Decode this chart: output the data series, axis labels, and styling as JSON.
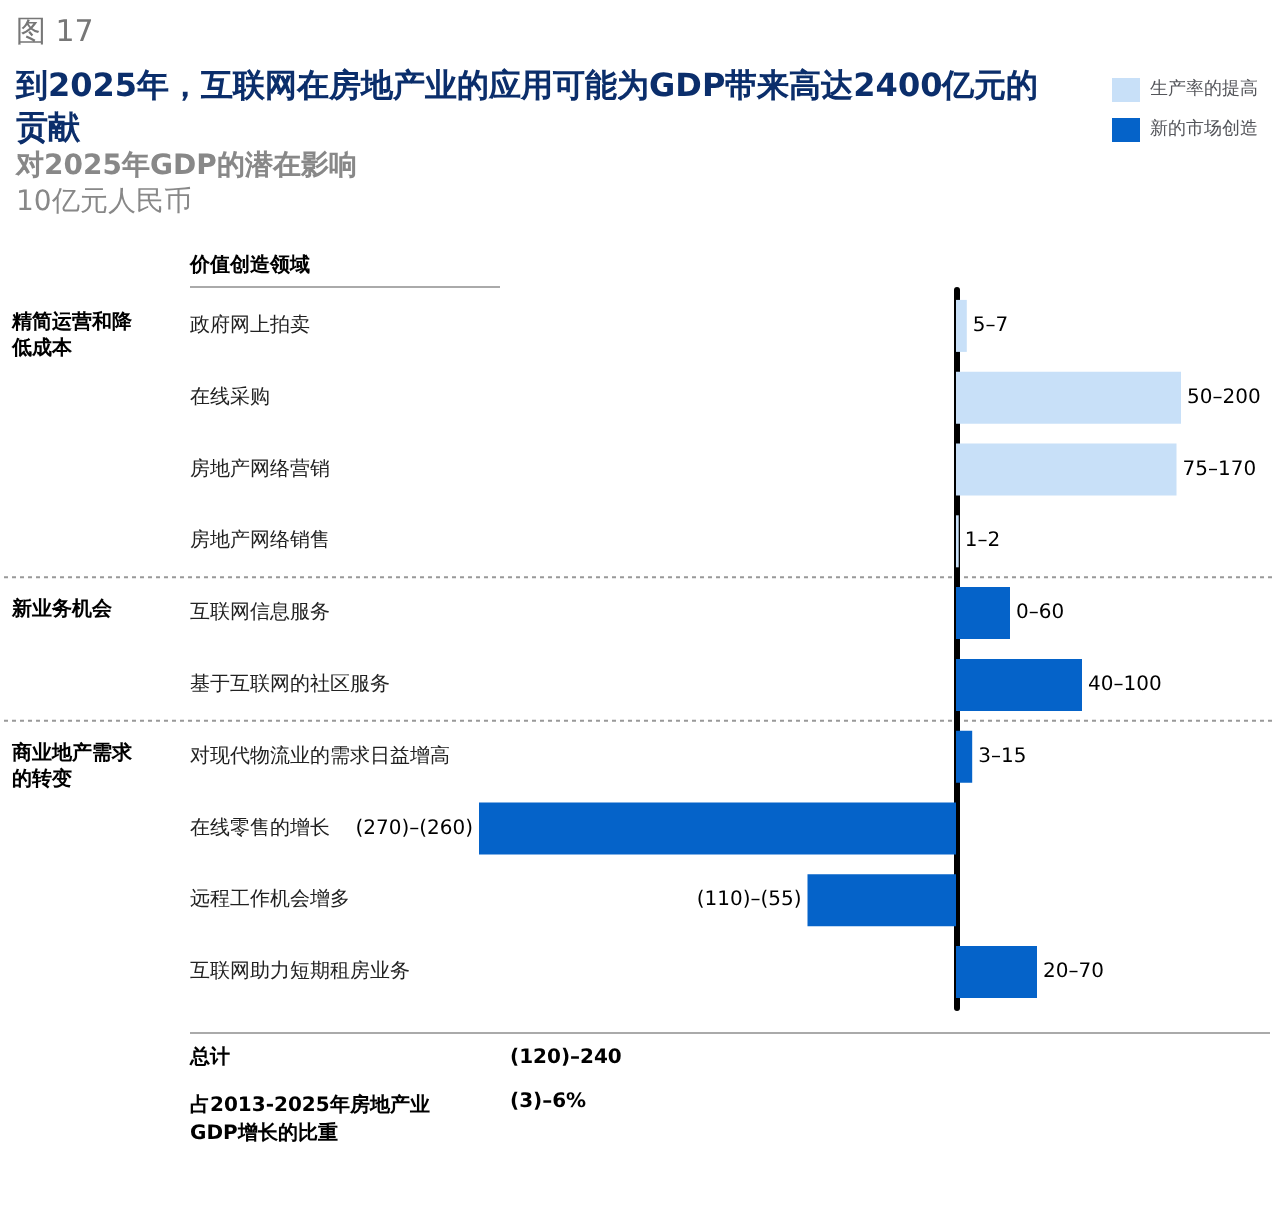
{
  "chart_data": {
    "type": "bar",
    "orientation": "horizontal",
    "stacked": true,
    "title": "到2025年，互联网在房地产业的应用可能为GDP带来高达2400亿元的贡献",
    "subtitle": "对2025年GDP的潜在影响",
    "xlabel": "10亿元人民币",
    "categories": [
      "政府网上拍卖",
      "在线采购",
      "房地产网络营销",
      "房地产网络销售",
      "互联网信息服务",
      "基于互联网的社区服务",
      "对现代物流业的需求日益增高",
      "在线零售的增长",
      "远程工作机会增多",
      "互联网助力短期租房业务"
    ],
    "series": [
      {
        "name": "生产率的提高",
        "color": "#c8e0f8",
        "values": [
          6,
          125,
          122.5,
          1.5,
          null,
          null,
          null,
          null,
          null,
          null
        ],
        "value_labels": [
          "5–7",
          "50–200",
          "75–170",
          "1–2",
          null,
          null,
          null,
          null,
          null,
          null
        ]
      },
      {
        "name": "新的市场创造",
        "color": "#0563c9",
        "values": [
          null,
          null,
          null,
          null,
          30,
          70,
          9,
          -265,
          -82.5,
          45
        ],
        "value_labels": [
          null,
          null,
          null,
          null,
          "0–60",
          "40–100",
          "3–15",
          "(270)–(260)",
          "(110)–(55)",
          "20–70"
        ]
      }
    ],
    "legend": "top right",
    "annotations": [
      "图 17",
      "价值创造领域",
      "精简运营和降低成本",
      "新业务机会",
      "商业地产需求的转变",
      "总计",
      "(120)–240",
      "占2013-2025年房地产业GDP增长的比重",
      "(3)–6%"
    ]
  }
}
